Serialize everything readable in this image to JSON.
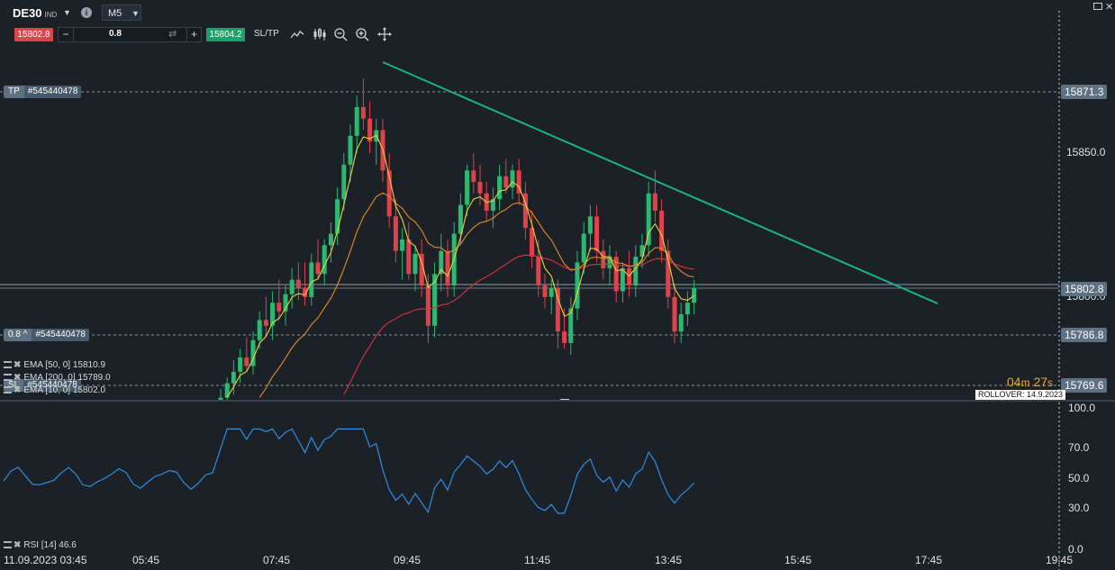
{
  "header": {
    "symbol": "DE30",
    "symbol_type": "IND",
    "timeframe": "M5",
    "bid": "15802.8",
    "quantity": "0.8",
    "ask": "15804.2",
    "sltp_label": "SL/TP",
    "minus_label": "−",
    "plus_label": "+"
  },
  "icons": [
    "dropdown-caret-icon",
    "info-icon",
    "line-chart-icon",
    "candles-icon",
    "zoom-out-icon",
    "zoom-in-icon",
    "crosshair-icon",
    "window-icon",
    "close-icon"
  ],
  "colors": {
    "background": "#1b2127",
    "bull": "#2db871",
    "bear": "#e0424c",
    "ema10": "#e8d43a",
    "ema50": "#e48a2a",
    "ema200": "#d8353b",
    "rsi": "#2f8fe4",
    "trendline": "#17b38a"
  },
  "price_axis": {
    "tp": "15871.3",
    "level_1": "15850.0",
    "current": "15802.8",
    "level_2": "15800.0",
    "pending": "15786.8",
    "sl": "15769.6"
  },
  "orders": {
    "tp_label": "TP",
    "tp_id": "#545440478",
    "entry_label": "0.8 ^",
    "entry_id": "#545440478",
    "sl_label": "SL",
    "sl_id": "#545440478"
  },
  "indicators": {
    "ema50": "EMA [50, 0] 15810.9",
    "ema200": "EMA [200, 0] 15789.0",
    "ema10": "EMA [10, 0] 15802.0",
    "rsi": "RSI [14] 46.6"
  },
  "countdown": {
    "minutes": "04",
    "m": "m",
    "seconds": "27",
    "s": "s"
  },
  "rollover": "ROLLOVER: 14.9.2023",
  "rsi_axis": [
    "100.0",
    "70.0",
    "50.0",
    "30.0",
    "0.0"
  ],
  "time_axis": [
    "11.09.2023 03:45",
    "05:45",
    "07:45",
    "09:45",
    "11:45",
    "13:45",
    "15:45",
    "17:45",
    "19:45"
  ],
  "chart_data": {
    "type": "candlestick",
    "timeframe": "M5",
    "price_range": [
      15760,
      15880
    ],
    "trendline": {
      "from": {
        "time": "09:20",
        "price": 15875
      },
      "to": {
        "time": "17:50",
        "price": 15798
      }
    },
    "candles": [
      {
        "o": 15762,
        "h": 15768,
        "l": 15758,
        "c": 15765
      },
      {
        "o": 15765,
        "h": 15772,
        "l": 15762,
        "c": 15770
      },
      {
        "o": 15770,
        "h": 15778,
        "l": 15766,
        "c": 15774
      },
      {
        "o": 15774,
        "h": 15782,
        "l": 15770,
        "c": 15779
      },
      {
        "o": 15779,
        "h": 15786,
        "l": 15774,
        "c": 15776
      },
      {
        "o": 15776,
        "h": 15788,
        "l": 15773,
        "c": 15785
      },
      {
        "o": 15785,
        "h": 15795,
        "l": 15782,
        "c": 15792
      },
      {
        "o": 15792,
        "h": 15800,
        "l": 15786,
        "c": 15790
      },
      {
        "o": 15790,
        "h": 15802,
        "l": 15785,
        "c": 15798
      },
      {
        "o": 15798,
        "h": 15806,
        "l": 15792,
        "c": 15795
      },
      {
        "o": 15795,
        "h": 15804,
        "l": 15790,
        "c": 15801
      },
      {
        "o": 15801,
        "h": 15810,
        "l": 15796,
        "c": 15806
      },
      {
        "o": 15806,
        "h": 15812,
        "l": 15799,
        "c": 15803
      },
      {
        "o": 15803,
        "h": 15812,
        "l": 15797,
        "c": 15800
      },
      {
        "o": 15800,
        "h": 15815,
        "l": 15797,
        "c": 15812
      },
      {
        "o": 15812,
        "h": 15820,
        "l": 15806,
        "c": 15808
      },
      {
        "o": 15808,
        "h": 15820,
        "l": 15804,
        "c": 15818
      },
      {
        "o": 15818,
        "h": 15826,
        "l": 15812,
        "c": 15822
      },
      {
        "o": 15822,
        "h": 15838,
        "l": 15818,
        "c": 15834
      },
      {
        "o": 15834,
        "h": 15850,
        "l": 15830,
        "c": 15846
      },
      {
        "o": 15846,
        "h": 15860,
        "l": 15840,
        "c": 15856
      },
      {
        "o": 15856,
        "h": 15870,
        "l": 15850,
        "c": 15866
      },
      {
        "o": 15866,
        "h": 15876,
        "l": 15858,
        "c": 15862
      },
      {
        "o": 15862,
        "h": 15868,
        "l": 15850,
        "c": 15854
      },
      {
        "o": 15854,
        "h": 15862,
        "l": 15846,
        "c": 15858
      },
      {
        "o": 15858,
        "h": 15862,
        "l": 15840,
        "c": 15844
      },
      {
        "o": 15844,
        "h": 15850,
        "l": 15824,
        "c": 15828
      },
      {
        "o": 15828,
        "h": 15834,
        "l": 15812,
        "c": 15816
      },
      {
        "o": 15816,
        "h": 15824,
        "l": 15806,
        "c": 15820
      },
      {
        "o": 15820,
        "h": 15826,
        "l": 15806,
        "c": 15808
      },
      {
        "o": 15808,
        "h": 15818,
        "l": 15802,
        "c": 15815
      },
      {
        "o": 15815,
        "h": 15820,
        "l": 15800,
        "c": 15804
      },
      {
        "o": 15804,
        "h": 15808,
        "l": 15784,
        "c": 15790
      },
      {
        "o": 15790,
        "h": 15812,
        "l": 15786,
        "c": 15808
      },
      {
        "o": 15808,
        "h": 15822,
        "l": 15802,
        "c": 15816
      },
      {
        "o": 15816,
        "h": 15820,
        "l": 15800,
        "c": 15804
      },
      {
        "o": 15804,
        "h": 15826,
        "l": 15800,
        "c": 15822
      },
      {
        "o": 15822,
        "h": 15836,
        "l": 15818,
        "c": 15832
      },
      {
        "o": 15832,
        "h": 15846,
        "l": 15828,
        "c": 15844
      },
      {
        "o": 15844,
        "h": 15850,
        "l": 15836,
        "c": 15840
      },
      {
        "o": 15840,
        "h": 15846,
        "l": 15832,
        "c": 15836
      },
      {
        "o": 15836,
        "h": 15840,
        "l": 15826,
        "c": 15830
      },
      {
        "o": 15830,
        "h": 15838,
        "l": 15824,
        "c": 15834
      },
      {
        "o": 15834,
        "h": 15846,
        "l": 15830,
        "c": 15842
      },
      {
        "o": 15842,
        "h": 15848,
        "l": 15836,
        "c": 15838
      },
      {
        "o": 15838,
        "h": 15846,
        "l": 15834,
        "c": 15844
      },
      {
        "o": 15844,
        "h": 15848,
        "l": 15832,
        "c": 15836
      },
      {
        "o": 15836,
        "h": 15840,
        "l": 15820,
        "c": 15824
      },
      {
        "o": 15824,
        "h": 15830,
        "l": 15810,
        "c": 15814
      },
      {
        "o": 15814,
        "h": 15820,
        "l": 15800,
        "c": 15804
      },
      {
        "o": 15804,
        "h": 15808,
        "l": 15796,
        "c": 15800
      },
      {
        "o": 15800,
        "h": 15806,
        "l": 15794,
        "c": 15803
      },
      {
        "o": 15803,
        "h": 15806,
        "l": 15782,
        "c": 15788
      },
      {
        "o": 15788,
        "h": 15796,
        "l": 15782,
        "c": 15784
      },
      {
        "o": 15784,
        "h": 15800,
        "l": 15780,
        "c": 15796
      },
      {
        "o": 15796,
        "h": 15816,
        "l": 15792,
        "c": 15812
      },
      {
        "o": 15812,
        "h": 15826,
        "l": 15808,
        "c": 15822
      },
      {
        "o": 15822,
        "h": 15832,
        "l": 15816,
        "c": 15828
      },
      {
        "o": 15828,
        "h": 15832,
        "l": 15812,
        "c": 15816
      },
      {
        "o": 15816,
        "h": 15820,
        "l": 15806,
        "c": 15810
      },
      {
        "o": 15810,
        "h": 15818,
        "l": 15804,
        "c": 15814
      },
      {
        "o": 15814,
        "h": 15816,
        "l": 15798,
        "c": 15802
      },
      {
        "o": 15802,
        "h": 15812,
        "l": 15798,
        "c": 15810
      },
      {
        "o": 15810,
        "h": 15816,
        "l": 15800,
        "c": 15804
      },
      {
        "o": 15804,
        "h": 15818,
        "l": 15800,
        "c": 15814
      },
      {
        "o": 15814,
        "h": 15822,
        "l": 15810,
        "c": 15818
      },
      {
        "o": 15818,
        "h": 15840,
        "l": 15814,
        "c": 15836
      },
      {
        "o": 15836,
        "h": 15844,
        "l": 15826,
        "c": 15830
      },
      {
        "o": 15830,
        "h": 15834,
        "l": 15812,
        "c": 15816
      },
      {
        "o": 15816,
        "h": 15820,
        "l": 15796,
        "c": 15800
      },
      {
        "o": 15800,
        "h": 15804,
        "l": 15784,
        "c": 15788
      },
      {
        "o": 15788,
        "h": 15798,
        "l": 15784,
        "c": 15794
      },
      {
        "o": 15794,
        "h": 15802,
        "l": 15790,
        "c": 15798
      },
      {
        "o": 15798,
        "h": 15806,
        "l": 15794,
        "c": 15803
      }
    ]
  }
}
